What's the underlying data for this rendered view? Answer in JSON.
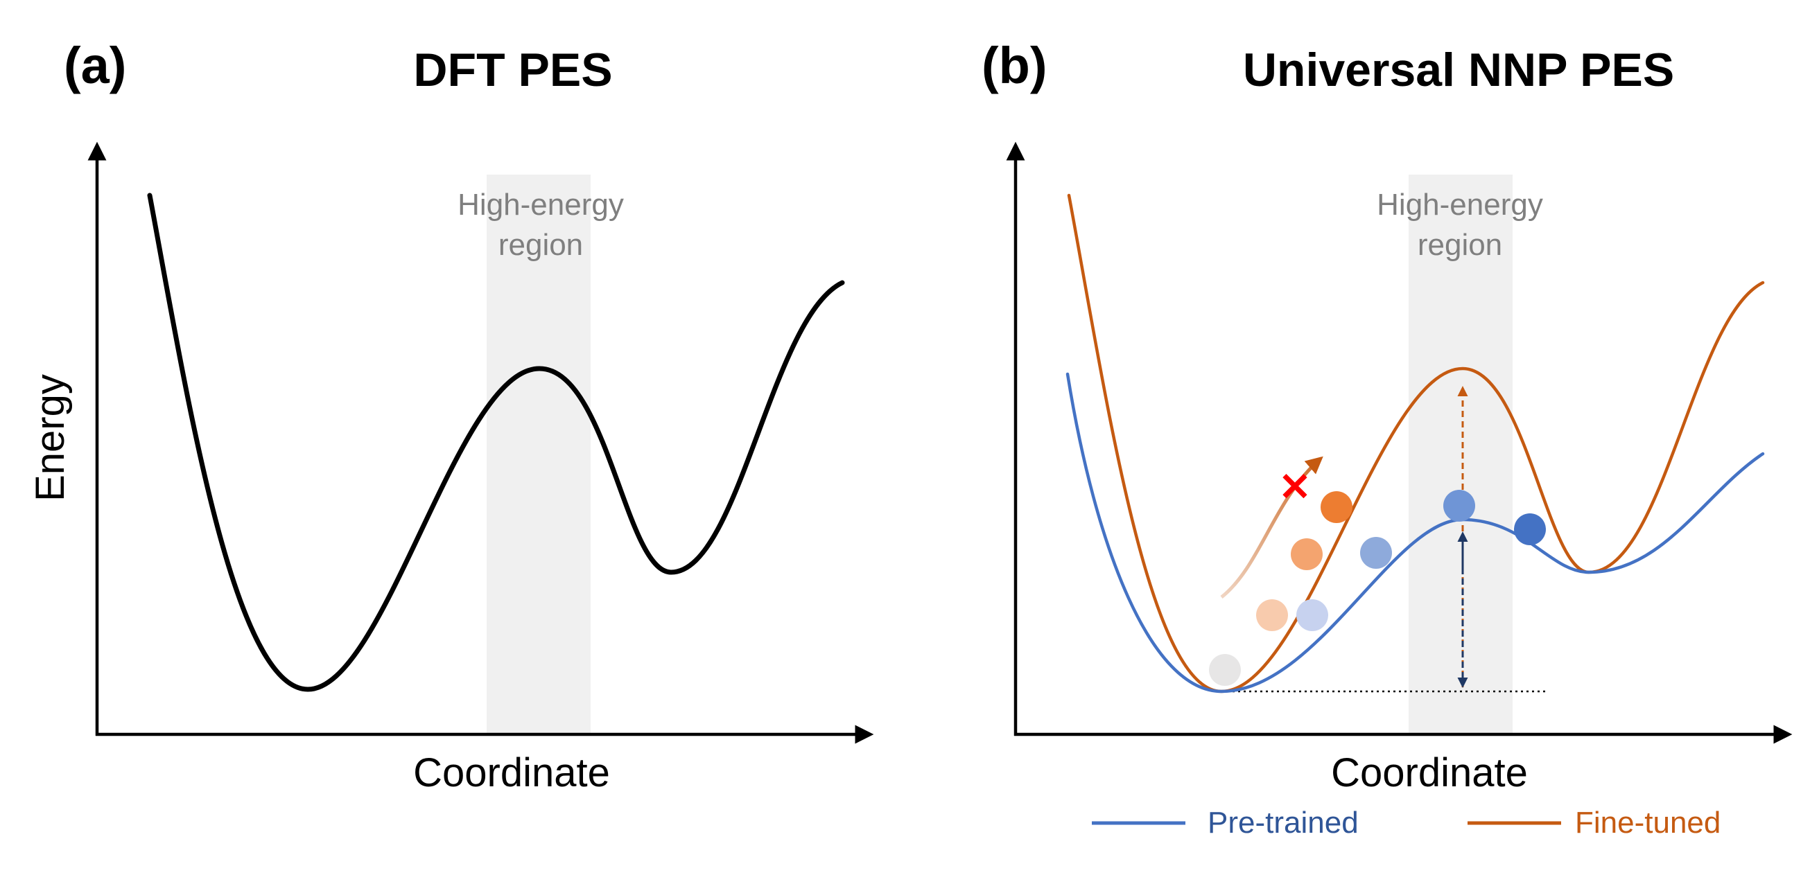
{
  "panel_a": {
    "letter": "(a)",
    "title": "DFT PES",
    "xlabel": "Coordinate",
    "ylabel": "Energy",
    "region_line1": "High-energy",
    "region_line2": "region"
  },
  "panel_b": {
    "letter": "(b)",
    "title": "Universal NNP PES",
    "xlabel": "Coordinate",
    "region_line1": "High-energy",
    "region_line2": "region",
    "failed_mark": "✕"
  },
  "legend": {
    "pretrained_label": "Pre-trained",
    "finetuned_label": "Fine-tuned"
  },
  "colors": {
    "dft_curve": "#000000",
    "pretrained": "#4472c4",
    "finetuned": "#c55a11",
    "region_shade": "#f0f0f0",
    "region_text": "#7f7f7f",
    "barrier_arrow_dark": "#1f3864",
    "cross": "#ff0000",
    "start_ball": "#e7e6e6"
  }
}
